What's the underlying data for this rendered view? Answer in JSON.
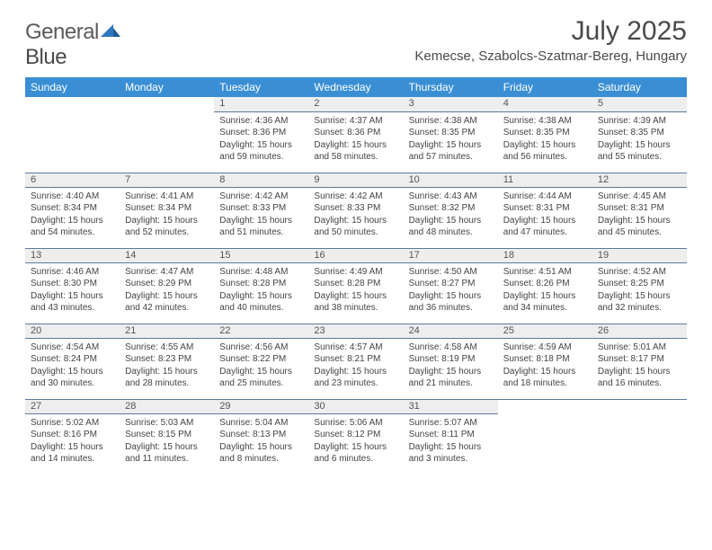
{
  "logo": {
    "word1": "General",
    "word2": "Blue"
  },
  "title": "July 2025",
  "location": "Kemecse, Szabolcs-Szatmar-Bereg, Hungary",
  "colors": {
    "header_bg": "#3a8fd4",
    "header_fg": "#ffffff",
    "daynum_bg": "#eeeeee",
    "rule": "#5a7a9a",
    "text": "#444444",
    "title": "#4a4a4a",
    "logo_icon": "#2f78bc"
  },
  "daysOfWeek": [
    "Sunday",
    "Monday",
    "Tuesday",
    "Wednesday",
    "Thursday",
    "Friday",
    "Saturday"
  ],
  "weeks": [
    [
      null,
      null,
      {
        "n": "1",
        "sr": "4:36 AM",
        "ss": "8:36 PM",
        "dl": "15 hours",
        "dm": "and 59 minutes."
      },
      {
        "n": "2",
        "sr": "4:37 AM",
        "ss": "8:36 PM",
        "dl": "15 hours",
        "dm": "and 58 minutes."
      },
      {
        "n": "3",
        "sr": "4:38 AM",
        "ss": "8:35 PM",
        "dl": "15 hours",
        "dm": "and 57 minutes."
      },
      {
        "n": "4",
        "sr": "4:38 AM",
        "ss": "8:35 PM",
        "dl": "15 hours",
        "dm": "and 56 minutes."
      },
      {
        "n": "5",
        "sr": "4:39 AM",
        "ss": "8:35 PM",
        "dl": "15 hours",
        "dm": "and 55 minutes."
      }
    ],
    [
      {
        "n": "6",
        "sr": "4:40 AM",
        "ss": "8:34 PM",
        "dl": "15 hours",
        "dm": "and 54 minutes."
      },
      {
        "n": "7",
        "sr": "4:41 AM",
        "ss": "8:34 PM",
        "dl": "15 hours",
        "dm": "and 52 minutes."
      },
      {
        "n": "8",
        "sr": "4:42 AM",
        "ss": "8:33 PM",
        "dl": "15 hours",
        "dm": "and 51 minutes."
      },
      {
        "n": "9",
        "sr": "4:42 AM",
        "ss": "8:33 PM",
        "dl": "15 hours",
        "dm": "and 50 minutes."
      },
      {
        "n": "10",
        "sr": "4:43 AM",
        "ss": "8:32 PM",
        "dl": "15 hours",
        "dm": "and 48 minutes."
      },
      {
        "n": "11",
        "sr": "4:44 AM",
        "ss": "8:31 PM",
        "dl": "15 hours",
        "dm": "and 47 minutes."
      },
      {
        "n": "12",
        "sr": "4:45 AM",
        "ss": "8:31 PM",
        "dl": "15 hours",
        "dm": "and 45 minutes."
      }
    ],
    [
      {
        "n": "13",
        "sr": "4:46 AM",
        "ss": "8:30 PM",
        "dl": "15 hours",
        "dm": "and 43 minutes."
      },
      {
        "n": "14",
        "sr": "4:47 AM",
        "ss": "8:29 PM",
        "dl": "15 hours",
        "dm": "and 42 minutes."
      },
      {
        "n": "15",
        "sr": "4:48 AM",
        "ss": "8:28 PM",
        "dl": "15 hours",
        "dm": "and 40 minutes."
      },
      {
        "n": "16",
        "sr": "4:49 AM",
        "ss": "8:28 PM",
        "dl": "15 hours",
        "dm": "and 38 minutes."
      },
      {
        "n": "17",
        "sr": "4:50 AM",
        "ss": "8:27 PM",
        "dl": "15 hours",
        "dm": "and 36 minutes."
      },
      {
        "n": "18",
        "sr": "4:51 AM",
        "ss": "8:26 PM",
        "dl": "15 hours",
        "dm": "and 34 minutes."
      },
      {
        "n": "19",
        "sr": "4:52 AM",
        "ss": "8:25 PM",
        "dl": "15 hours",
        "dm": "and 32 minutes."
      }
    ],
    [
      {
        "n": "20",
        "sr": "4:54 AM",
        "ss": "8:24 PM",
        "dl": "15 hours",
        "dm": "and 30 minutes."
      },
      {
        "n": "21",
        "sr": "4:55 AM",
        "ss": "8:23 PM",
        "dl": "15 hours",
        "dm": "and 28 minutes."
      },
      {
        "n": "22",
        "sr": "4:56 AM",
        "ss": "8:22 PM",
        "dl": "15 hours",
        "dm": "and 25 minutes."
      },
      {
        "n": "23",
        "sr": "4:57 AM",
        "ss": "8:21 PM",
        "dl": "15 hours",
        "dm": "and 23 minutes."
      },
      {
        "n": "24",
        "sr": "4:58 AM",
        "ss": "8:19 PM",
        "dl": "15 hours",
        "dm": "and 21 minutes."
      },
      {
        "n": "25",
        "sr": "4:59 AM",
        "ss": "8:18 PM",
        "dl": "15 hours",
        "dm": "and 18 minutes."
      },
      {
        "n": "26",
        "sr": "5:01 AM",
        "ss": "8:17 PM",
        "dl": "15 hours",
        "dm": "and 16 minutes."
      }
    ],
    [
      {
        "n": "27",
        "sr": "5:02 AM",
        "ss": "8:16 PM",
        "dl": "15 hours",
        "dm": "and 14 minutes."
      },
      {
        "n": "28",
        "sr": "5:03 AM",
        "ss": "8:15 PM",
        "dl": "15 hours",
        "dm": "and 11 minutes."
      },
      {
        "n": "29",
        "sr": "5:04 AM",
        "ss": "8:13 PM",
        "dl": "15 hours",
        "dm": "and 8 minutes."
      },
      {
        "n": "30",
        "sr": "5:06 AM",
        "ss": "8:12 PM",
        "dl": "15 hours",
        "dm": "and 6 minutes."
      },
      {
        "n": "31",
        "sr": "5:07 AM",
        "ss": "8:11 PM",
        "dl": "15 hours",
        "dm": "and 3 minutes."
      },
      null,
      null
    ]
  ],
  "labels": {
    "sunrise": "Sunrise:",
    "sunset": "Sunset:",
    "daylight": "Daylight:"
  }
}
